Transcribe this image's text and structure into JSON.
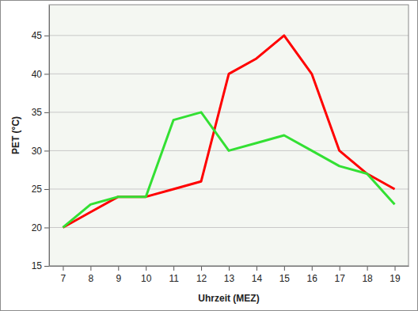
{
  "chart_data": {
    "type": "line",
    "x_label": "Uhrzeit (MEZ)",
    "y_label": "PET (°C)",
    "x": [
      7,
      8,
      9,
      10,
      11,
      12,
      13,
      14,
      15,
      16,
      17,
      18,
      19
    ],
    "series": [
      {
        "color": "#ff0000",
        "values": [
          20,
          22,
          24,
          24,
          25,
          26,
          40,
          42,
          45,
          40,
          30,
          27,
          25
        ]
      },
      {
        "color": "#33e033",
        "values": [
          20,
          23,
          24,
          24,
          34,
          35,
          30,
          31,
          32,
          30,
          28,
          27,
          23
        ]
      }
    ],
    "xlim": [
      6.5,
      19.5
    ],
    "ylim": [
      15,
      49
    ],
    "xticks": [
      7,
      8,
      9,
      10,
      11,
      12,
      13,
      14,
      15,
      16,
      17,
      18,
      19
    ],
    "yticks": [
      15,
      20,
      25,
      30,
      35,
      40,
      45
    ],
    "grid": true
  }
}
